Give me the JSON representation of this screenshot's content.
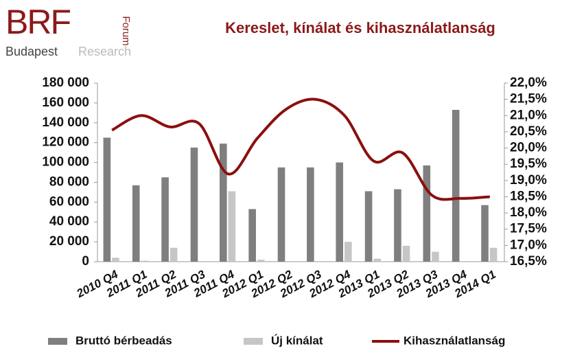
{
  "logo": {
    "brand": "BRF",
    "vertical": "Forum",
    "left": "Budapest",
    "right": "Research"
  },
  "chart_data": {
    "type": "bar-line",
    "title": "Kereslet, kínálat és kihasználatlanság",
    "categories": [
      "2010 Q4",
      "2011 Q1",
      "2011 Q2",
      "2011 Q3",
      "2011 Q4",
      "2012 Q1",
      "2012 Q2",
      "2012 Q3",
      "2012 Q4",
      "2013 Q1",
      "2013 Q2",
      "2013 Q3",
      "2013 Q4",
      "2014 Q1"
    ],
    "series": [
      {
        "name": "Bruttó bérbeadás",
        "color": "#7f7f7f",
        "values": [
          125000,
          77000,
          85000,
          115000,
          119000,
          53000,
          95000,
          95000,
          100000,
          71000,
          73000,
          97000,
          153000,
          57000
        ]
      },
      {
        "name": "Új kínálat",
        "color": "#c6c6c6",
        "values": [
          4000,
          1000,
          14000,
          0,
          71000,
          2000,
          0,
          0,
          20000,
          3000,
          16000,
          10000,
          0,
          14000
        ]
      },
      {
        "name": "Kihasználatlanság",
        "color": "#8b0f0f",
        "axis": "y2",
        "values": [
          20.55,
          21.0,
          20.65,
          20.75,
          19.2,
          20.3,
          21.2,
          21.5,
          21.0,
          19.6,
          19.85,
          18.55,
          18.45,
          18.5
        ]
      }
    ],
    "ylim": [
      0,
      180000
    ],
    "yticks": [
      0,
      {
        "value": 20000,
        "label": "20 000"
      },
      {
        "value": 40000,
        "label": "40 000"
      },
      {
        "value": 60000,
        "label": "60 000"
      },
      {
        "value": 80000,
        "label": "80 000"
      },
      {
        "value": 100000,
        "label": "100 000"
      },
      {
        "value": 120000,
        "label": "120 000"
      },
      {
        "value": 140000,
        "label": "140 000"
      },
      {
        "value": 160000,
        "label": "160 000"
      },
      {
        "value": 180000,
        "label": "180 000"
      }
    ],
    "y2lim": [
      16.5,
      22.0
    ],
    "y2ticks": [
      {
        "value": 16.5,
        "label": "16,5%"
      },
      {
        "value": 17.0,
        "label": "17,0%"
      },
      {
        "value": 17.5,
        "label": "17,5%"
      },
      {
        "value": 18.0,
        "label": "18,0%"
      },
      {
        "value": 18.5,
        "label": "18,5%"
      },
      {
        "value": 19.0,
        "label": "19,0%"
      },
      {
        "value": 19.5,
        "label": "19,5%"
      },
      {
        "value": 20.0,
        "label": "20,0%"
      },
      {
        "value": 20.5,
        "label": "20,5%"
      },
      {
        "value": 21.0,
        "label": "21,0%"
      },
      {
        "value": 21.5,
        "label": "21,5%"
      },
      {
        "value": 22.0,
        "label": "22,0%"
      }
    ],
    "grid": false,
    "legend": "bottom"
  }
}
